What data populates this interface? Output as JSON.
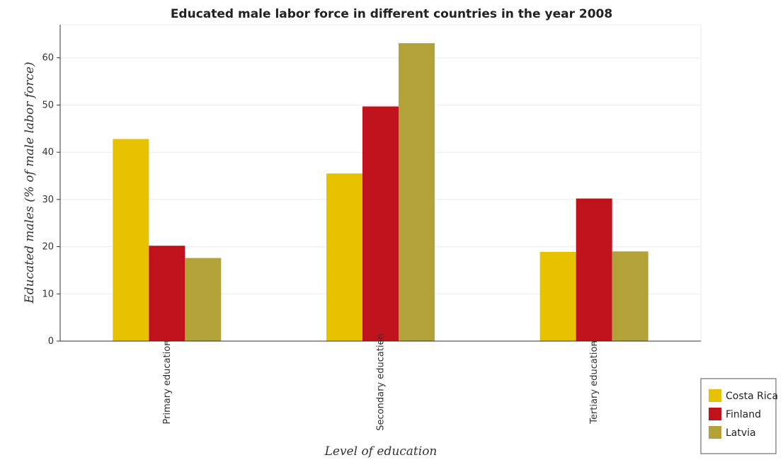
{
  "chart_data": {
    "type": "bar",
    "title": "Educated male labor force in different countries in the year 2008",
    "xlabel": "Level of education",
    "ylabel": "Educated males (% of male labor force)",
    "categories": [
      "Primary education",
      "Secondary education",
      "Tertiary education"
    ],
    "series": [
      {
        "name": "Costa Rica",
        "color": "#e6c200",
        "values": [
          42.8,
          35.5,
          18.9
        ]
      },
      {
        "name": "Finland",
        "color": "#c0121c",
        "values": [
          20.2,
          49.7,
          30.2
        ]
      },
      {
        "name": "Latvia",
        "color": "#b3a238",
        "values": [
          17.6,
          63.1,
          19.0
        ]
      }
    ],
    "ylim": [
      0,
      67
    ],
    "yticks": [
      0,
      10,
      20,
      30,
      40,
      50,
      60
    ],
    "grid": true,
    "legend": "bottom-right"
  }
}
